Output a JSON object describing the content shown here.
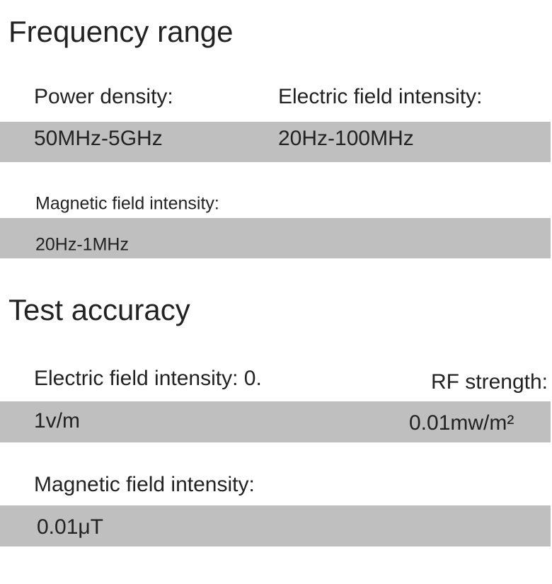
{
  "sections": [
    {
      "title": "Frequency range",
      "items": [
        {
          "label": "Power density:",
          "value": "50MHz-5GHz"
        },
        {
          "label": "Electric field intensity:",
          "value": "20Hz-100MHz"
        },
        {
          "label": "Magnetic field intensity:",
          "value": "20Hz-1MHz"
        }
      ]
    },
    {
      "title": "Test accuracy",
      "items": [
        {
          "label": "Electric field intensity: 0.",
          "value": "1v/m"
        },
        {
          "label": "RF strength:",
          "value": "0.01mw/m²"
        },
        {
          "label": "Magnetic field intensity:",
          "value": "0.01μT"
        }
      ]
    }
  ]
}
